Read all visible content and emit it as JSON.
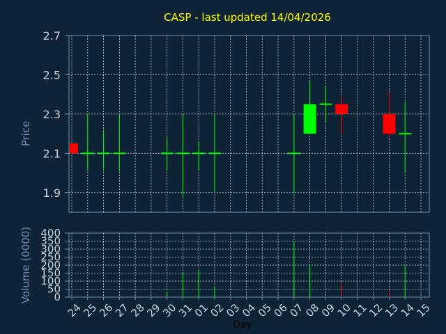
{
  "chart_data": {
    "type": "candlestick",
    "title": "CASP - last updated 14/04/2026",
    "price_panel": {
      "ylabel": "Price",
      "ylim": [
        1.8,
        2.7
      ],
      "yticks": [
        1.9,
        2.1,
        2.3,
        2.5,
        2.7
      ],
      "grid": true
    },
    "volume_panel": {
      "ylabel": "Volume (0000)",
      "ylim": [
        0,
        400
      ],
      "yticks": [
        0,
        50,
        100,
        150,
        200,
        250,
        300,
        350,
        400
      ],
      "grid": true
    },
    "xlabel": "Day",
    "days": [
      "24",
      "25",
      "26",
      "27",
      "28",
      "29",
      "30",
      "31",
      "01",
      "02",
      "03",
      "04",
      "05",
      "06",
      "07",
      "08",
      "09",
      "10",
      "11",
      "12",
      "13",
      "14",
      "15"
    ],
    "candles": [
      {
        "day": "24",
        "open": 2.1,
        "high": 2.15,
        "low": 2.1,
        "close": 2.15,
        "color": "red",
        "volume": 0
      },
      {
        "day": "25",
        "open": 2.1,
        "high": 2.3,
        "low": 2.01,
        "close": 2.1,
        "color": "green",
        "volume": 0
      },
      {
        "day": "26",
        "open": 2.1,
        "high": 2.22,
        "low": 2.01,
        "close": 2.1,
        "color": "green",
        "volume": 0
      },
      {
        "day": "27",
        "open": 2.1,
        "high": 2.3,
        "low": 2.01,
        "close": 2.1,
        "color": "green",
        "volume": 0
      },
      {
        "day": "30",
        "open": 2.1,
        "high": 2.18,
        "low": 2.01,
        "close": 2.1,
        "color": "green",
        "volume": 35
      },
      {
        "day": "31",
        "open": 2.1,
        "high": 2.3,
        "low": 1.88,
        "close": 2.1,
        "color": "green",
        "volume": 150
      },
      {
        "day": "01",
        "open": 2.1,
        "high": 2.16,
        "low": 2.01,
        "close": 2.1,
        "color": "green",
        "volume": 170
      },
      {
        "day": "02",
        "open": 2.1,
        "high": 2.3,
        "low": 1.9,
        "close": 2.1,
        "color": "green",
        "volume": 70
      },
      {
        "day": "07",
        "open": 2.1,
        "high": 2.3,
        "low": 1.9,
        "close": 2.1,
        "color": "green",
        "volume": 345
      },
      {
        "day": "08",
        "open": 2.2,
        "high": 2.47,
        "low": 2.2,
        "close": 2.35,
        "color": "green",
        "volume": 205
      },
      {
        "day": "09",
        "open": 2.35,
        "high": 2.44,
        "low": 2.26,
        "close": 2.35,
        "color": "green",
        "volume": 0
      },
      {
        "day": "10",
        "open": 2.35,
        "high": 2.39,
        "low": 2.2,
        "close": 2.3,
        "color": "red",
        "volume": 90
      },
      {
        "day": "13",
        "open": 2.3,
        "high": 2.41,
        "low": 2.18,
        "close": 2.2,
        "color": "red",
        "volume": 40
      },
      {
        "day": "14",
        "open": 2.2,
        "high": 2.36,
        "low": 2.0,
        "close": 2.2,
        "color": "green",
        "volume": 195
      }
    ],
    "colors": {
      "background": "#0f2336",
      "axis": "#6f93b0",
      "grid": "#c9d3dc",
      "title": "#ffff00",
      "label": "#6f93b0",
      "up": "#00ff00",
      "down": "#ff0000",
      "tick_text": "#c9d3dc",
      "xlabel": "#000000"
    }
  }
}
